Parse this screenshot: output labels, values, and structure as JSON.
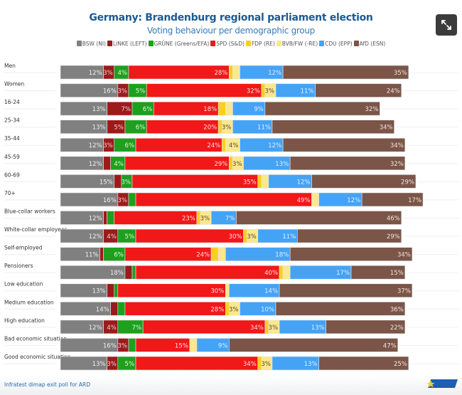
{
  "chart_data": {
    "type": "bar",
    "orientation": "horizontal",
    "stacked": true,
    "title": "Germany: Brandenburg regional parliament election",
    "subtitle": "Voting behaviour per demographic group",
    "legend_position": "top",
    "unit": "%",
    "series": [
      {
        "name": "BSW (NI)",
        "color": "#808080",
        "label_color": "#f0f0f0",
        "values": [
          12,
          16,
          13,
          13,
          12,
          12,
          15,
          16,
          12,
          12,
          11,
          18,
          13,
          14,
          12,
          16,
          13
        ]
      },
      {
        "name": "LINKE (LEFT)",
        "color": "#9b1b1b",
        "label_color": "#f4d0d0",
        "values": [
          3,
          3,
          7,
          5,
          3,
          2,
          2,
          3,
          1,
          4,
          1,
          2,
          2,
          2,
          4,
          3,
          3
        ]
      },
      {
        "name": "GRÜNE (Greens/EFA)",
        "color": "#1ea01e",
        "label_color": "#e0f5e0",
        "values": [
          4,
          5,
          6,
          6,
          6,
          4,
          3,
          2,
          2,
          5,
          6,
          1,
          1,
          2,
          7,
          2,
          5
        ]
      },
      {
        "name": "SPD (S&D)",
        "color": "#f01818",
        "label_color": "#fde0e0",
        "values": [
          28,
          32,
          18,
          20,
          24,
          29,
          35,
          49,
          23,
          30,
          24,
          40,
          30,
          28,
          34,
          15,
          34
        ]
      },
      {
        "name": "FDP (RE)",
        "color": "#f8d020",
        "label_color": "#5a4a10",
        "values": [
          1,
          1,
          2,
          1,
          1,
          1,
          1,
          0,
          1,
          1,
          2,
          1,
          0,
          1,
          1,
          0,
          1
        ]
      },
      {
        "name": "BVB/FW (-RE)",
        "color": "#fbe78e",
        "label_color": "#5a4a20",
        "values": [
          2,
          3,
          2,
          3,
          4,
          3,
          2,
          2,
          3,
          3,
          2,
          2,
          1,
          3,
          3,
          2,
          3
        ]
      },
      {
        "name": "CDU (EPP)",
        "color": "#45a3f5",
        "label_color": "#e0f0ff",
        "values": [
          12,
          11,
          9,
          11,
          12,
          13,
          12,
          12,
          7,
          11,
          18,
          17,
          14,
          10,
          13,
          9,
          13
        ]
      },
      {
        "name": "AfD (ESN)",
        "color": "#7a5548",
        "label_color": "#f3e6e0",
        "values": [
          35,
          24,
          32,
          34,
          34,
          32,
          29,
          17,
          46,
          29,
          34,
          15,
          37,
          36,
          22,
          47,
          25
        ]
      }
    ],
    "categories": [
      "Men",
      "Women",
      "16-24",
      "25-34",
      "35-44",
      "45-59",
      "60-69",
      "70+",
      "Blue-collar workers",
      "White-collar employees",
      "Self-employed",
      "Pensioners",
      "Low education",
      "Medium education",
      "High education",
      "Bad economic situation",
      "Good economic situation"
    ],
    "grid": false
  },
  "source": "Infratest dimap exit poll for ARD",
  "icons": {
    "expand": "expand-icon",
    "logo": "europe-elects-logo"
  }
}
